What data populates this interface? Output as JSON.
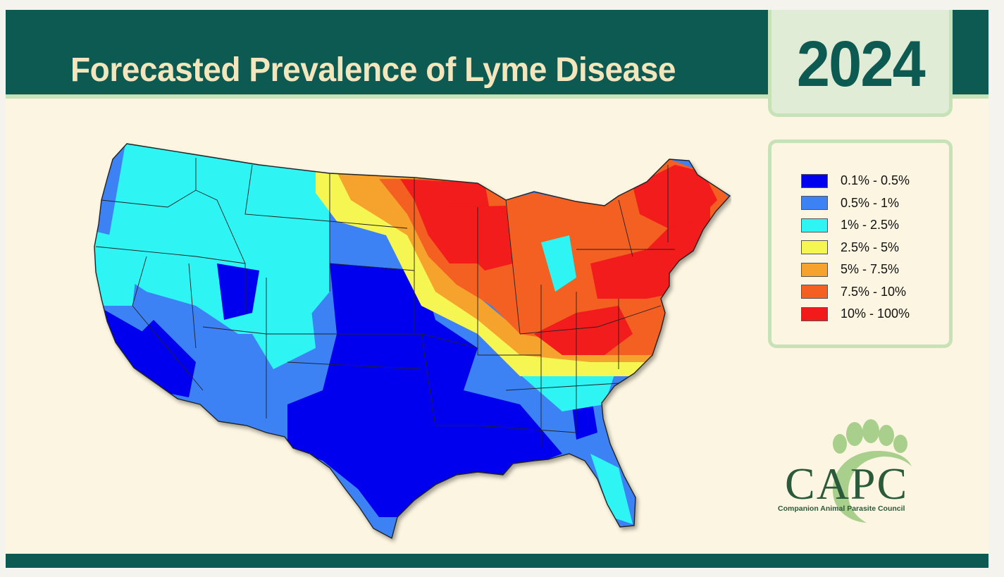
{
  "header": {
    "title": "Forecasted Prevalence of Lyme Disease",
    "year": "2024"
  },
  "legend": {
    "items": [
      {
        "label": "0.1% - 0.5%",
        "color": "#0000ee"
      },
      {
        "label": "0.5% - 1%",
        "color": "#3d82f4"
      },
      {
        "label": "1% - 2.5%",
        "color": "#2ef4f4"
      },
      {
        "label": "2.5% - 5%",
        "color": "#f6f653"
      },
      {
        "label": "5% - 7.5%",
        "color": "#f6a32e"
      },
      {
        "label": "7.5% - 10%",
        "color": "#f45f22"
      },
      {
        "label": "10% - 100%",
        "color": "#f21a1a"
      }
    ]
  },
  "logo": {
    "acronym": "CAPC",
    "name": "Companion Animal Parasite Council",
    "icon": "paw-print-icon"
  },
  "colors": {
    "header_band": "#0d5a52",
    "title_text": "#f3e6bd",
    "accent_green": "#c6e2b6",
    "background": "#fcf5e1"
  }
}
